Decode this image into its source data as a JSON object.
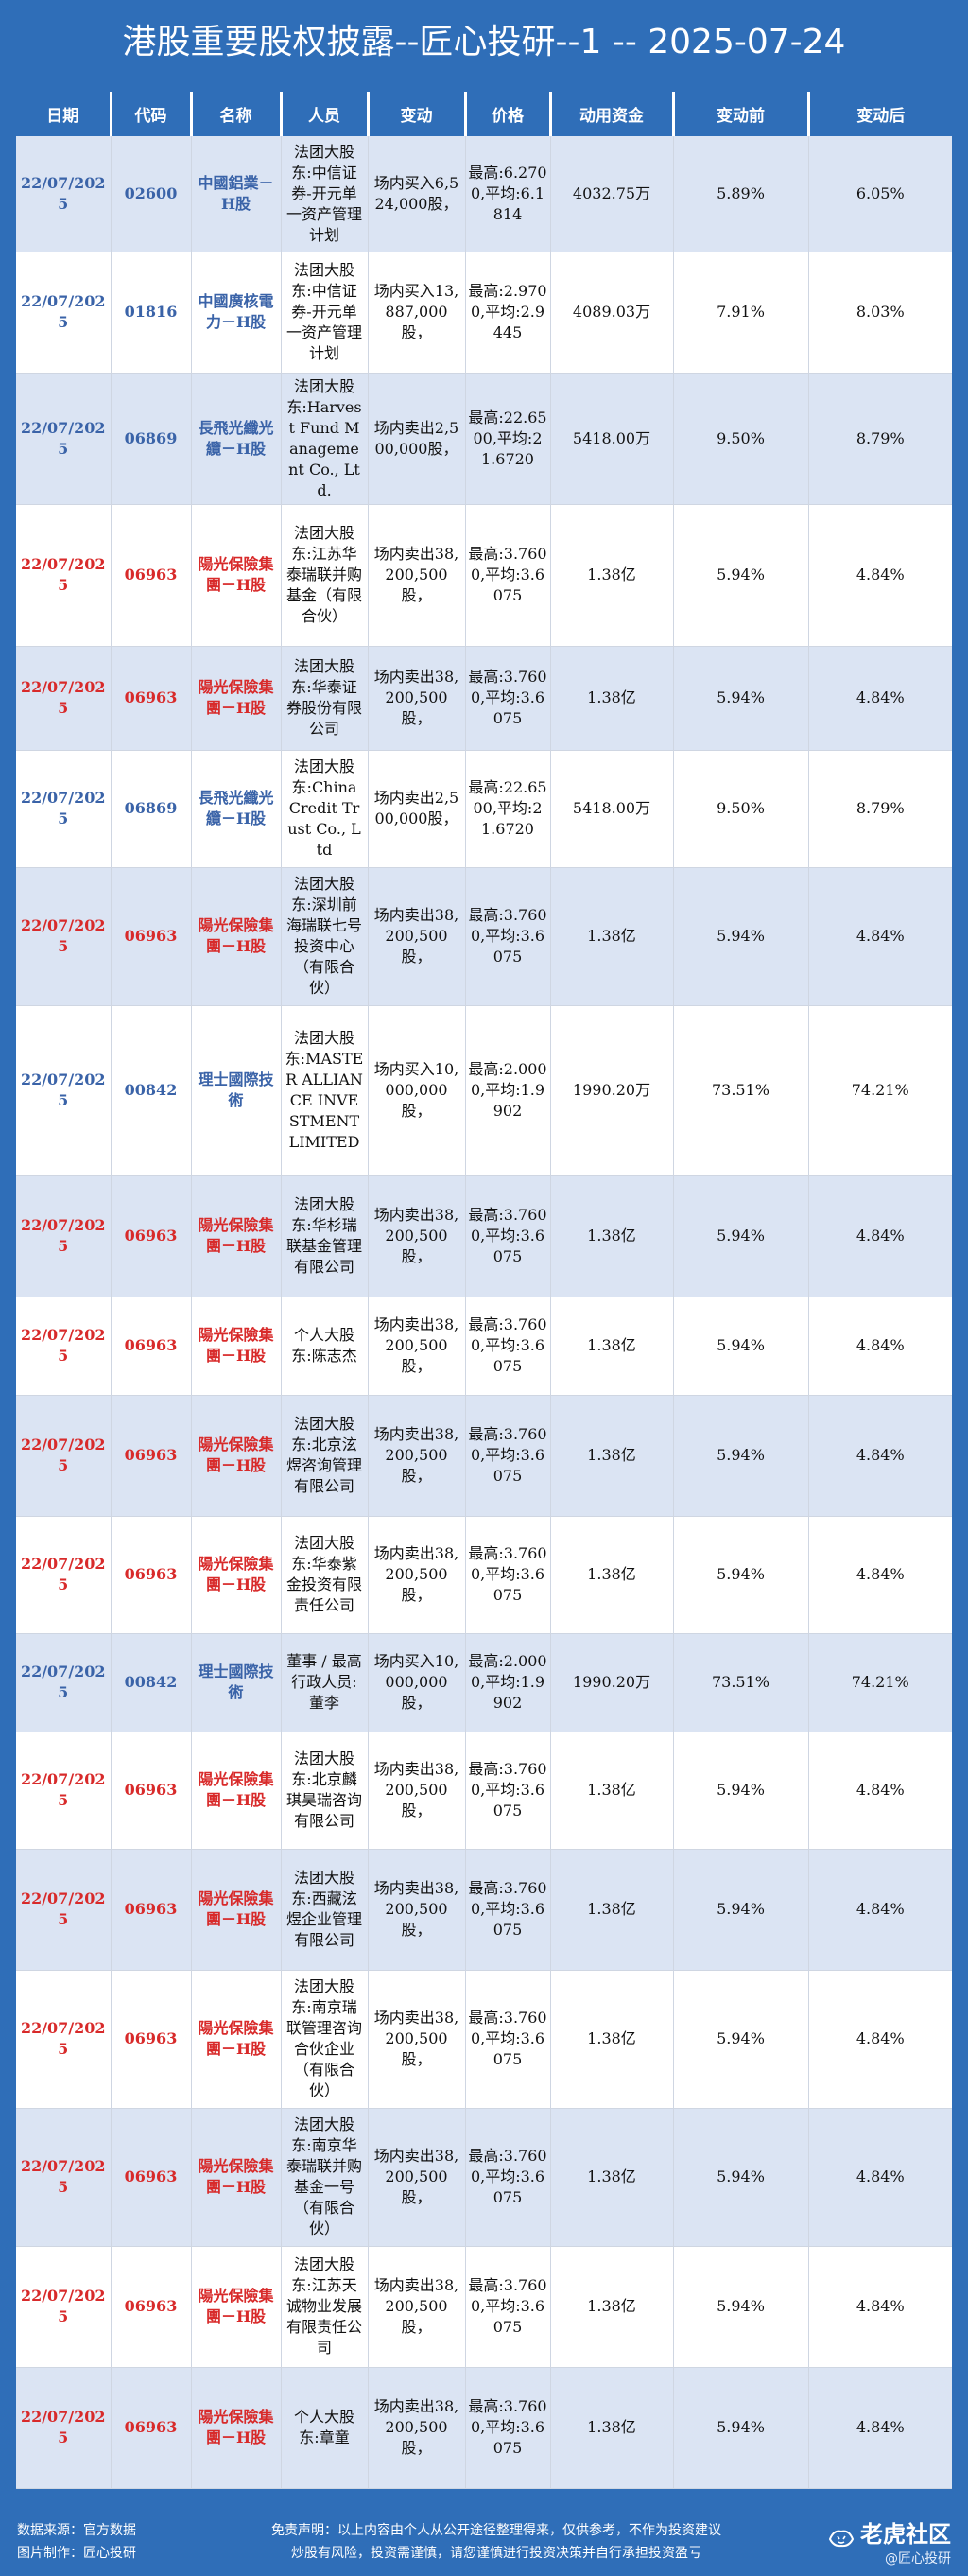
{
  "title": "港股重要股权披露--匠心投研--1 -- 2025-07-24",
  "headers": [
    "日期",
    "代码",
    "名称",
    "人员",
    "变动",
    "价格",
    "动用资金",
    "变动前",
    "变动后"
  ],
  "rows": [
    {
      "date": "22/07/2025",
      "code": "02600",
      "name": "中國鋁業－H股",
      "person": "法团大股东:中信证券-开元单一资产管理计划",
      "change": "场内买入6,524,000股，",
      "price": "最高:6.2700,平均:6.1814",
      "capital": "4032.75万",
      "before": "5.89%",
      "after": "6.05%",
      "color": "blue"
    },
    {
      "date": "22/07/2025",
      "code": "01816",
      "name": "中國廣核電力－H股",
      "person": "法团大股东:中信证券-开元单一资产管理计划",
      "change": "场内买入13,887,000股，",
      "price": "最高:2.9700,平均:2.9445",
      "capital": "4089.03万",
      "before": "7.91%",
      "after": "8.03%",
      "color": "blue"
    },
    {
      "date": "22/07/2025",
      "code": "06869",
      "name": "長飛光纖光纜－H股",
      "person": "法团大股东:Harvest Fund Management Co., Ltd.",
      "change": "场内卖出2,500,000股，",
      "price": "最高:22.6500,平均:21.6720",
      "capital": "5418.00万",
      "before": "9.50%",
      "after": "8.79%",
      "color": "blue"
    },
    {
      "date": "22/07/2025",
      "code": "06963",
      "name": "陽光保險集團－H股",
      "person": "法团大股东:江苏华泰瑞联并购基金（有限合伙）",
      "change": "场内卖出38,200,500股，",
      "price": "最高:3.7600,平均:3.6075",
      "capital": "1.38亿",
      "before": "5.94%",
      "after": "4.84%",
      "color": "red"
    },
    {
      "date": "22/07/2025",
      "code": "06963",
      "name": "陽光保險集團－H股",
      "person": "法团大股东:华泰证券股份有限公司",
      "change": "场内卖出38,200,500股，",
      "price": "最高:3.7600,平均:3.6075",
      "capital": "1.38亿",
      "before": "5.94%",
      "after": "4.84%",
      "color": "red"
    },
    {
      "date": "22/07/2025",
      "code": "06869",
      "name": "長飛光纖光纜－H股",
      "person": "法团大股东:China Credit Trust Co., Ltd",
      "change": "场内卖出2,500,000股，",
      "price": "最高:22.6500,平均:21.6720",
      "capital": "5418.00万",
      "before": "9.50%",
      "after": "8.79%",
      "color": "blue"
    },
    {
      "date": "22/07/2025",
      "code": "06963",
      "name": "陽光保險集團－H股",
      "person": "法团大股东:深圳前海瑞联七号投资中心（有限合伙）",
      "change": "场内卖出38,200,500股，",
      "price": "最高:3.7600,平均:3.6075",
      "capital": "1.38亿",
      "before": "5.94%",
      "after": "4.84%",
      "color": "red"
    },
    {
      "date": "22/07/2025",
      "code": "00842",
      "name": "理士國際技術",
      "person": "法团大股东:MASTER ALLIANCE INVESTMENT LIMITED",
      "change": "场内买入10,000,000股，",
      "price": "最高:2.0000,平均:1.9902",
      "capital": "1990.20万",
      "before": "73.51%",
      "after": "74.21%",
      "color": "blue"
    },
    {
      "date": "22/07/2025",
      "code": "06963",
      "name": "陽光保險集團－H股",
      "person": "法团大股东:华杉瑞联基金管理有限公司",
      "change": "场内卖出38,200,500股，",
      "price": "最高:3.7600,平均:3.6075",
      "capital": "1.38亿",
      "before": "5.94%",
      "after": "4.84%",
      "color": "red"
    },
    {
      "date": "22/07/2025",
      "code": "06963",
      "name": "陽光保險集團－H股",
      "person": "个人大股东:陈志杰",
      "change": "场内卖出38,200,500股，",
      "price": "最高:3.7600,平均:3.6075",
      "capital": "1.38亿",
      "before": "5.94%",
      "after": "4.84%",
      "color": "red"
    },
    {
      "date": "22/07/2025",
      "code": "06963",
      "name": "陽光保險集團－H股",
      "person": "法团大股东:北京泫煜咨询管理有限公司",
      "change": "场内卖出38,200,500股，",
      "price": "最高:3.7600,平均:3.6075",
      "capital": "1.38亿",
      "before": "5.94%",
      "after": "4.84%",
      "color": "red"
    },
    {
      "date": "22/07/2025",
      "code": "06963",
      "name": "陽光保險集團－H股",
      "person": "法团大股东:华泰紫金投资有限责任公司",
      "change": "场内卖出38,200,500股，",
      "price": "最高:3.7600,平均:3.6075",
      "capital": "1.38亿",
      "before": "5.94%",
      "after": "4.84%",
      "color": "red"
    },
    {
      "date": "22/07/2025",
      "code": "00842",
      "name": "理士國際技術",
      "person": "董事 / 最高行政人员:董李",
      "change": "场内买入10,000,000股，",
      "price": "最高:2.0000,平均:1.9902",
      "capital": "1990.20万",
      "before": "73.51%",
      "after": "74.21%",
      "color": "blue"
    },
    {
      "date": "22/07/2025",
      "code": "06963",
      "name": "陽光保險集團－H股",
      "person": "法团大股东:北京麟琪昊瑞咨询有限公司",
      "change": "场内卖出38,200,500股，",
      "price": "最高:3.7600,平均:3.6075",
      "capital": "1.38亿",
      "before": "5.94%",
      "after": "4.84%",
      "color": "red"
    },
    {
      "date": "22/07/2025",
      "code": "06963",
      "name": "陽光保險集團－H股",
      "person": "法团大股东:西藏泫煜企业管理有限公司",
      "change": "场内卖出38,200,500股，",
      "price": "最高:3.7600,平均:3.6075",
      "capital": "1.38亿",
      "before": "5.94%",
      "after": "4.84%",
      "color": "red"
    },
    {
      "date": "22/07/2025",
      "code": "06963",
      "name": "陽光保險集團－H股",
      "person": "法团大股东:南京瑞联管理咨询合伙企业（有限合伙）",
      "change": "场内卖出38,200,500股，",
      "price": "最高:3.7600,平均:3.6075",
      "capital": "1.38亿",
      "before": "5.94%",
      "after": "4.84%",
      "color": "red"
    },
    {
      "date": "22/07/2025",
      "code": "06963",
      "name": "陽光保險集團－H股",
      "person": "法团大股东:南京华泰瑞联并购基金一号（有限合伙）",
      "change": "场内卖出38,200,500股，",
      "price": "最高:3.7600,平均:3.6075",
      "capital": "1.38亿",
      "before": "5.94%",
      "after": "4.84%",
      "color": "red"
    },
    {
      "date": "22/07/2025",
      "code": "06963",
      "name": "陽光保險集團－H股",
      "person": "法团大股东:江苏天诚物业发展有限责任公司",
      "change": "场内卖出38,200,500股，",
      "price": "最高:3.7600,平均:3.6075",
      "capital": "1.38亿",
      "before": "5.94%",
      "after": "4.84%",
      "color": "red"
    },
    {
      "date": "22/07/2025",
      "code": "06963",
      "name": "陽光保險集團－H股",
      "person": "个人大股东:章童",
      "change": "场内卖出38,200,500股，",
      "price": "最高:3.7600,平均:3.6075",
      "capital": "1.38亿",
      "before": "5.94%",
      "after": "4.84%",
      "color": "red"
    }
  ],
  "footer": {
    "source": "数据来源：官方数据",
    "made_by": "图片制作：匠心投研",
    "disclaimer_1": "免责声明：以上内容由个人从公开途径整理得来，仅供参考，不作为投资建议",
    "disclaimer_2": "炒股有风险，投资需谨慎，请您谨慎进行投资决策并自行承担投资盈亏",
    "brand": "老虎社区",
    "handle": "@匠心投研"
  },
  "colors": {
    "background": "#2f6eb8",
    "row_stripe": "#dbe4f3",
    "code_blue": "#3a63a8",
    "code_red": "#d82a2a"
  },
  "icons": [
    "tiger-icon"
  ]
}
